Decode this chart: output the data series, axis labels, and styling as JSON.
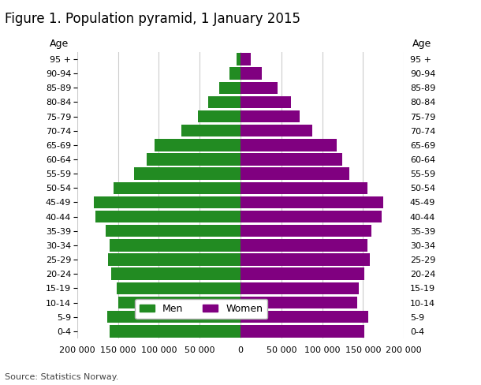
{
  "title": "Figure 1. Population pyramid, 1 January 2015",
  "source": "Source: Statistics Norway.",
  "age_groups": [
    "0-4",
    "5-9",
    "10-14",
    "15-19",
    "20-24",
    "25-29",
    "30-34",
    "35-39",
    "40-44",
    "45-49",
    "50-54",
    "55-59",
    "60-64",
    "65-69",
    "70-74",
    "75-79",
    "80-84",
    "85-89",
    "90-94",
    "95 +"
  ],
  "men": [
    160000,
    163000,
    150000,
    152000,
    158000,
    162000,
    160000,
    165000,
    178000,
    180000,
    155000,
    130000,
    115000,
    105000,
    72000,
    52000,
    40000,
    26000,
    14000,
    4500
  ],
  "women": [
    152000,
    156000,
    143000,
    145000,
    152000,
    158000,
    155000,
    160000,
    173000,
    175000,
    155000,
    133000,
    125000,
    118000,
    88000,
    72000,
    62000,
    45000,
    26000,
    13000
  ],
  "men_color": "#228B22",
  "women_color": "#800080",
  "xlim": 200000,
  "xticks": [
    -200000,
    -150000,
    -100000,
    -50000,
    0,
    50000,
    100000,
    150000,
    200000
  ],
  "xticklabels": [
    "200 000",
    "150 000",
    "100 000",
    "50 000",
    "0",
    "50 000",
    "100 000",
    "150 000",
    "200 000"
  ],
  "grid_color": "#cccccc",
  "bg_color": "#ffffff",
  "bar_height": 0.85,
  "title_fontsize": 12,
  "tick_fontsize": 8,
  "legend_fontsize": 9
}
